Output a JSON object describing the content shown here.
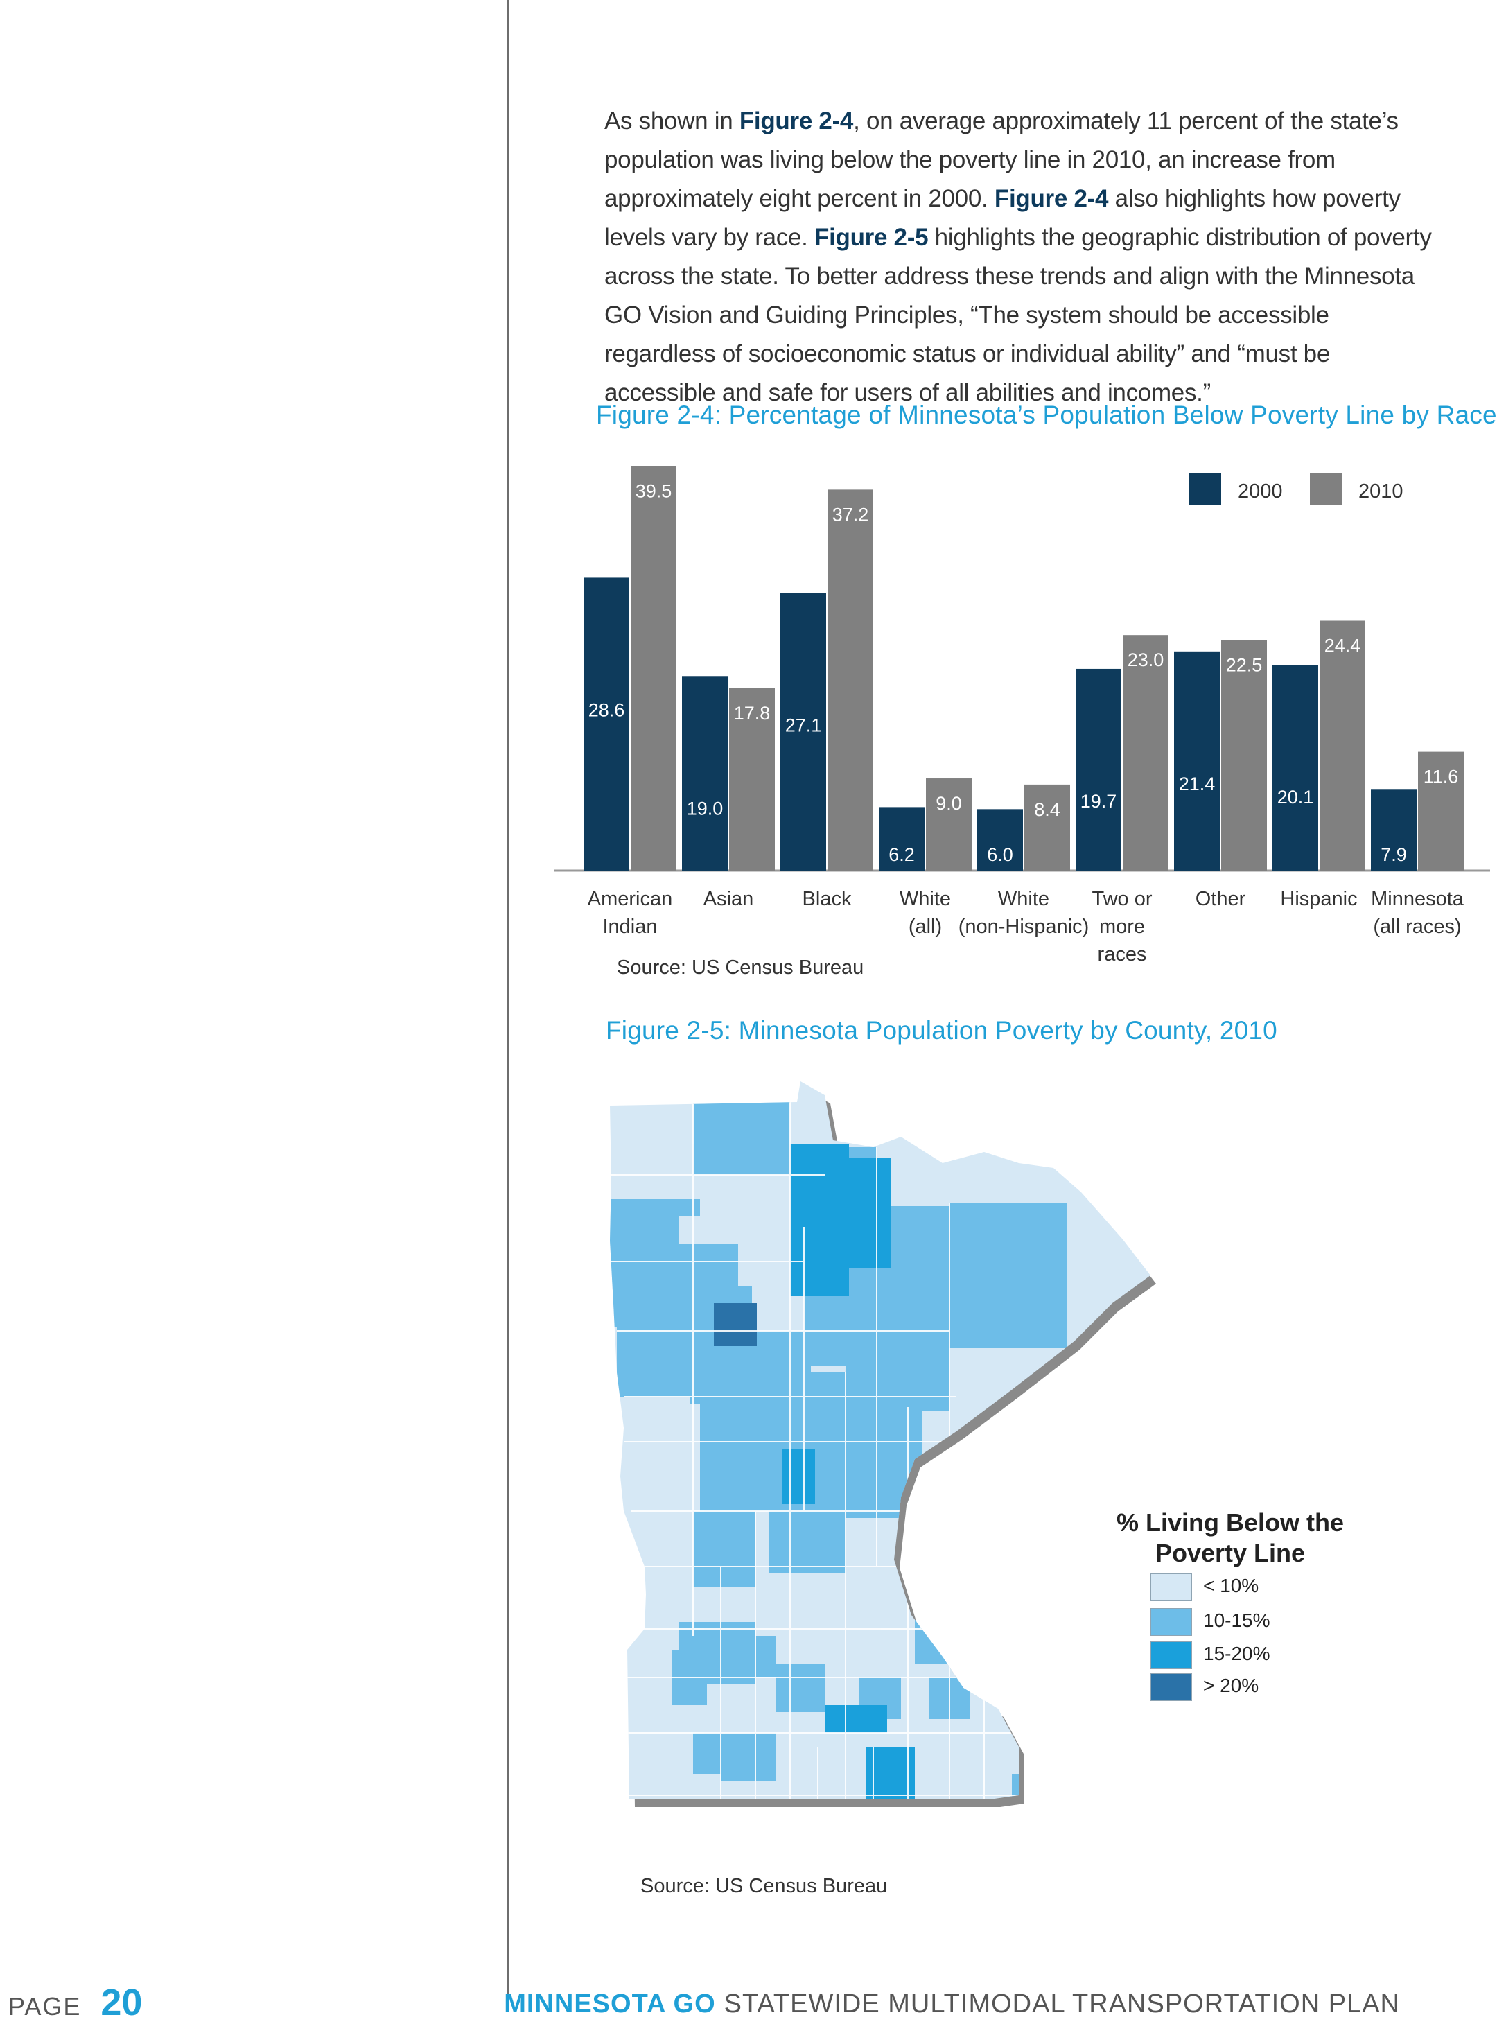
{
  "paragraph": {
    "t1": "As shown in ",
    "b1": "Figure 2-4",
    "t2": ", on average approximately 11 percent of the state’s population was living below the poverty line in 2010, an increase from approximately eight percent in 2000. ",
    "b2": "Figure 2-4",
    "t3": " also highlights how poverty levels vary by race. ",
    "b3": "Figure 2-5",
    "t4": " highlights the geographic distribution of poverty across the state. To better address these trends and align with the Minnesota GO Vision and Guiding Principles, “The system should be accessible regardless of socioeconomic status or individual ability” and “must be accessible and safe for users of all abilities and incomes.”"
  },
  "figure24": {
    "title": "Figure 2-4: Percentage of Minnesota’s Population Below Poverty Line by Race",
    "source": "Source: US Census Bureau"
  },
  "chart_data": {
    "type": "bar",
    "title": "Figure 2-4: Percentage of Minnesota’s Population Below Poverty Line by Race",
    "categories": [
      [
        "American",
        "Indian"
      ],
      [
        "Asian"
      ],
      [
        "Black"
      ],
      [
        "White",
        "(all)"
      ],
      [
        "White",
        "(non-Hispanic)"
      ],
      [
        "Two or",
        "more",
        "races"
      ],
      [
        "Other"
      ],
      [
        "Hispanic"
      ],
      [
        "Minnesota",
        "(all races)"
      ]
    ],
    "series": [
      {
        "name": "2000",
        "color": "#0e3b5c",
        "values": [
          28.6,
          19.0,
          27.1,
          6.2,
          6.0,
          19.7,
          21.4,
          20.1,
          7.9
        ],
        "labels": [
          "28.6",
          "19.0",
          "27.1",
          "6.2",
          "6.0",
          "19.7",
          "21.4",
          "20.1",
          "7.9"
        ]
      },
      {
        "name": "2010",
        "color": "#808080",
        "values": [
          39.5,
          17.8,
          37.2,
          9.0,
          8.4,
          23.0,
          22.5,
          24.4,
          11.6
        ],
        "labels": [
          "39.5",
          "17.8",
          "37.2",
          "9.0",
          "8.4",
          "23.0",
          "22.5",
          "24.4",
          "11.6"
        ]
      }
    ],
    "ylim": [
      0,
      40
    ],
    "legend": "top-right",
    "xlabel": "",
    "ylabel": ""
  },
  "figure25": {
    "title": "Figure 2-5: Minnesota Population Poverty by County, 2010",
    "source": "Source: US Census Bureau",
    "legend_title_1": "% Living Below the",
    "legend_title_2": "Poverty Line",
    "legend": [
      {
        "label": "< 10%",
        "color": "#d6e8f5"
      },
      {
        "label": "10-15%",
        "color": "#6dbde8"
      },
      {
        "label": "15-20%",
        "color": "#1aa0db"
      },
      {
        "label": "> 20%",
        "color": "#2a72a8"
      }
    ]
  },
  "footer": {
    "page_label": "PAGE",
    "page_number": "20",
    "brand": "MINNESOTA GO",
    "plan": "STATEWIDE MULTIMODAL TRANSPORTATION PLAN"
  }
}
